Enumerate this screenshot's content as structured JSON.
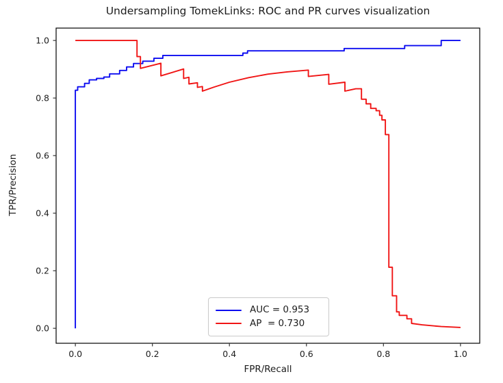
{
  "title": "Undersampling TomekLinks: ROC and PR curves visualization",
  "axes": {
    "xlabel": "FPR/Recall",
    "ylabel": "TPR/Precision",
    "xticks": [
      "0.0",
      "0.2",
      "0.4",
      "0.6",
      "0.8",
      "1.0"
    ],
    "yticks": [
      "0.0",
      "0.2",
      "0.4",
      "0.6",
      "0.8",
      "1.0"
    ]
  },
  "legend": {
    "entries": [
      {
        "label": "AUC = 0.953",
        "color": "#0b0bf0",
        "series": "ROC curve"
      },
      {
        "label": "AP  = 0.730",
        "color": "#f01414",
        "series": "PR curve"
      }
    ]
  },
  "chart_data": {
    "type": "line",
    "title": "Undersampling TomekLinks: ROC and PR curves visualization",
    "xlabel": "FPR/Recall",
    "ylabel": "TPR/Precision",
    "xlim": [
      -0.05,
      1.05
    ],
    "ylim": [
      -0.052,
      1.043
    ],
    "grid": false,
    "legend_position": "lower center",
    "series": [
      {
        "name": "ROC curve (AUC = 0.953)",
        "color": "#0b0bf0",
        "auc": 0.953,
        "points": [
          [
            0.0,
            0.0
          ],
          [
            0.0,
            0.827
          ],
          [
            0.006,
            0.827
          ],
          [
            0.006,
            0.839
          ],
          [
            0.024,
            0.839
          ],
          [
            0.024,
            0.851
          ],
          [
            0.036,
            0.851
          ],
          [
            0.036,
            0.863
          ],
          [
            0.055,
            0.863
          ],
          [
            0.055,
            0.868
          ],
          [
            0.074,
            0.868
          ],
          [
            0.074,
            0.873
          ],
          [
            0.089,
            0.873
          ],
          [
            0.089,
            0.884
          ],
          [
            0.115,
            0.884
          ],
          [
            0.115,
            0.896
          ],
          [
            0.133,
            0.896
          ],
          [
            0.133,
            0.908
          ],
          [
            0.151,
            0.908
          ],
          [
            0.151,
            0.92
          ],
          [
            0.175,
            0.92
          ],
          [
            0.175,
            0.928
          ],
          [
            0.204,
            0.928
          ],
          [
            0.204,
            0.938
          ],
          [
            0.227,
            0.938
          ],
          [
            0.227,
            0.948
          ],
          [
            0.435,
            0.948
          ],
          [
            0.435,
            0.956
          ],
          [
            0.447,
            0.956
          ],
          [
            0.447,
            0.964
          ],
          [
            0.698,
            0.964
          ],
          [
            0.698,
            0.972
          ],
          [
            0.855,
            0.972
          ],
          [
            0.855,
            0.982
          ],
          [
            0.95,
            0.982
          ],
          [
            0.95,
            1.0
          ],
          [
            1.0,
            1.0
          ]
        ]
      },
      {
        "name": "PR curve (AP = 0.730)",
        "color": "#f01414",
        "ap": 0.73,
        "points": [
          [
            0.0,
            1.0
          ],
          [
            0.16,
            1.0
          ],
          [
            0.16,
            0.944
          ],
          [
            0.169,
            0.944
          ],
          [
            0.169,
            0.903
          ],
          [
            0.222,
            0.921
          ],
          [
            0.222,
            0.877
          ],
          [
            0.281,
            0.901
          ],
          [
            0.281,
            0.868
          ],
          [
            0.295,
            0.872
          ],
          [
            0.295,
            0.849
          ],
          [
            0.317,
            0.853
          ],
          [
            0.317,
            0.837
          ],
          [
            0.33,
            0.84
          ],
          [
            0.33,
            0.824
          ],
          [
            0.36,
            0.838
          ],
          [
            0.4,
            0.855
          ],
          [
            0.45,
            0.871
          ],
          [
            0.5,
            0.883
          ],
          [
            0.55,
            0.891
          ],
          [
            0.605,
            0.897
          ],
          [
            0.605,
            0.875
          ],
          [
            0.658,
            0.882
          ],
          [
            0.658,
            0.848
          ],
          [
            0.7,
            0.855
          ],
          [
            0.7,
            0.824
          ],
          [
            0.728,
            0.832
          ],
          [
            0.743,
            0.832
          ],
          [
            0.743,
            0.796
          ],
          [
            0.755,
            0.796
          ],
          [
            0.755,
            0.78
          ],
          [
            0.767,
            0.78
          ],
          [
            0.767,
            0.764
          ],
          [
            0.781,
            0.764
          ],
          [
            0.781,
            0.756
          ],
          [
            0.79,
            0.756
          ],
          [
            0.79,
            0.74
          ],
          [
            0.796,
            0.74
          ],
          [
            0.796,
            0.724
          ],
          [
            0.805,
            0.724
          ],
          [
            0.805,
            0.673
          ],
          [
            0.814,
            0.673
          ],
          [
            0.814,
            0.212
          ],
          [
            0.823,
            0.212
          ],
          [
            0.823,
            0.113
          ],
          [
            0.834,
            0.113
          ],
          [
            0.834,
            0.057
          ],
          [
            0.841,
            0.057
          ],
          [
            0.841,
            0.045
          ],
          [
            0.861,
            0.045
          ],
          [
            0.861,
            0.033
          ],
          [
            0.873,
            0.033
          ],
          [
            0.873,
            0.017
          ],
          [
            0.9,
            0.012
          ],
          [
            0.95,
            0.006
          ],
          [
            1.0,
            0.003
          ]
        ]
      }
    ]
  },
  "style": {
    "frame_color": "#000000",
    "tick_color": "#333333",
    "text_color": "#1c1c1c",
    "background": "#ffffff"
  }
}
